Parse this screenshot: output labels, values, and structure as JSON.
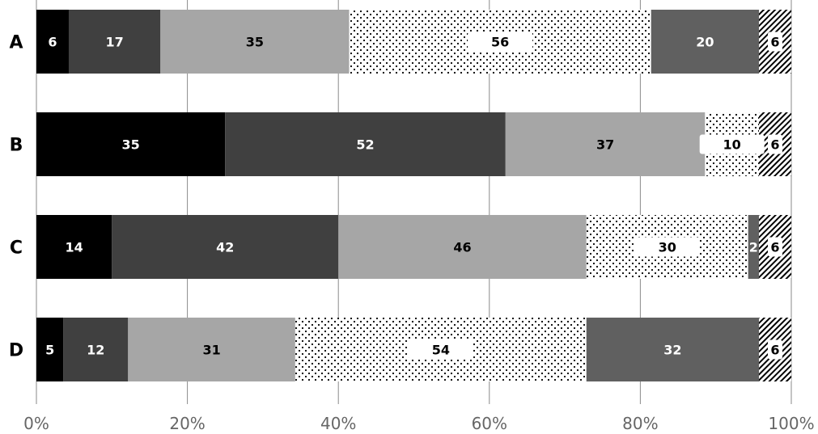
{
  "chart_data": {
    "type": "bar",
    "orientation": "horizontal",
    "stacked": "percent",
    "categories": [
      "A",
      "B",
      "C",
      "D"
    ],
    "series": [
      {
        "values": [
          6,
          35,
          14,
          5
        ],
        "color": "#000000",
        "pattern": "solid",
        "label_color": "#ffffff"
      },
      {
        "values": [
          17,
          52,
          42,
          12
        ],
        "color": "#404040",
        "pattern": "solid",
        "label_color": "#ffffff"
      },
      {
        "values": [
          35,
          37,
          46,
          31
        ],
        "color": "#a6a6a6",
        "pattern": "solid",
        "label_color": "#000000"
      },
      {
        "values": [
          56,
          10,
          30,
          54
        ],
        "color": "#ffffff",
        "pattern": "dots",
        "label_color": "#000000"
      },
      {
        "values": [
          20,
          0,
          2,
          32
        ],
        "color": "#606060",
        "pattern": "solid",
        "label_color": "#ffffff"
      },
      {
        "values": [
          6,
          6,
          6,
          6
        ],
        "color": "#ffffff",
        "pattern": "diagonal-stripes",
        "label_color": "#000000"
      }
    ],
    "x_ticks": [
      "0%",
      "20%",
      "40%",
      "60%",
      "80%",
      "100%"
    ],
    "xlim": [
      0,
      100
    ],
    "grid": "vertical",
    "legend": "none"
  }
}
